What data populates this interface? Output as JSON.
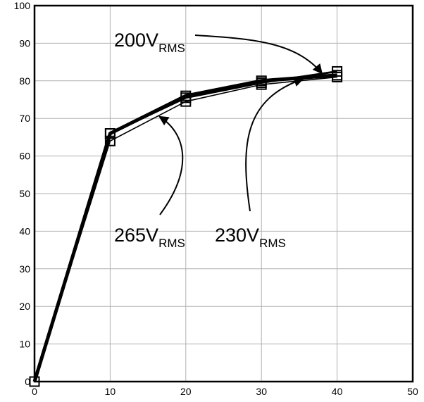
{
  "chart_data": {
    "type": "line",
    "title": "",
    "xlabel": "",
    "ylabel": "",
    "xlim": [
      0,
      50
    ],
    "ylim": [
      0,
      100
    ],
    "x_ticks": [
      0,
      10,
      20,
      30,
      40,
      50
    ],
    "y_ticks": [
      0,
      10,
      20,
      30,
      40,
      50,
      60,
      70,
      80,
      90,
      100
    ],
    "grid": true,
    "legend": "none",
    "series": [
      {
        "x": [
          0,
          10,
          20,
          30,
          40
        ],
        "values": [
          0,
          66,
          76,
          80,
          81.5
        ],
        "stroke": "heavy"
      },
      {
        "x": [
          0,
          10,
          20,
          30,
          40
        ],
        "values": [
          0,
          66,
          75.5,
          79.5,
          82.5
        ],
        "stroke": "medium"
      },
      {
        "x": [
          0,
          10,
          20,
          30,
          40
        ],
        "values": [
          0,
          64,
          74.5,
          79,
          81
        ],
        "stroke": "light"
      }
    ],
    "annotations": [
      {
        "base": "200V",
        "sub": "RMS",
        "points_to": {
          "x": 38,
          "y": 82
        }
      },
      {
        "base": "265V",
        "sub": "RMS",
        "points_to": {
          "x": 16.5,
          "y": 70.5
        }
      },
      {
        "base": "230V",
        "sub": "RMS",
        "points_to": {
          "x": 35.5,
          "y": 80.5
        }
      }
    ],
    "colors": {
      "line": "#000000",
      "grid": "#b0b0b0",
      "background": "#ffffff"
    }
  }
}
